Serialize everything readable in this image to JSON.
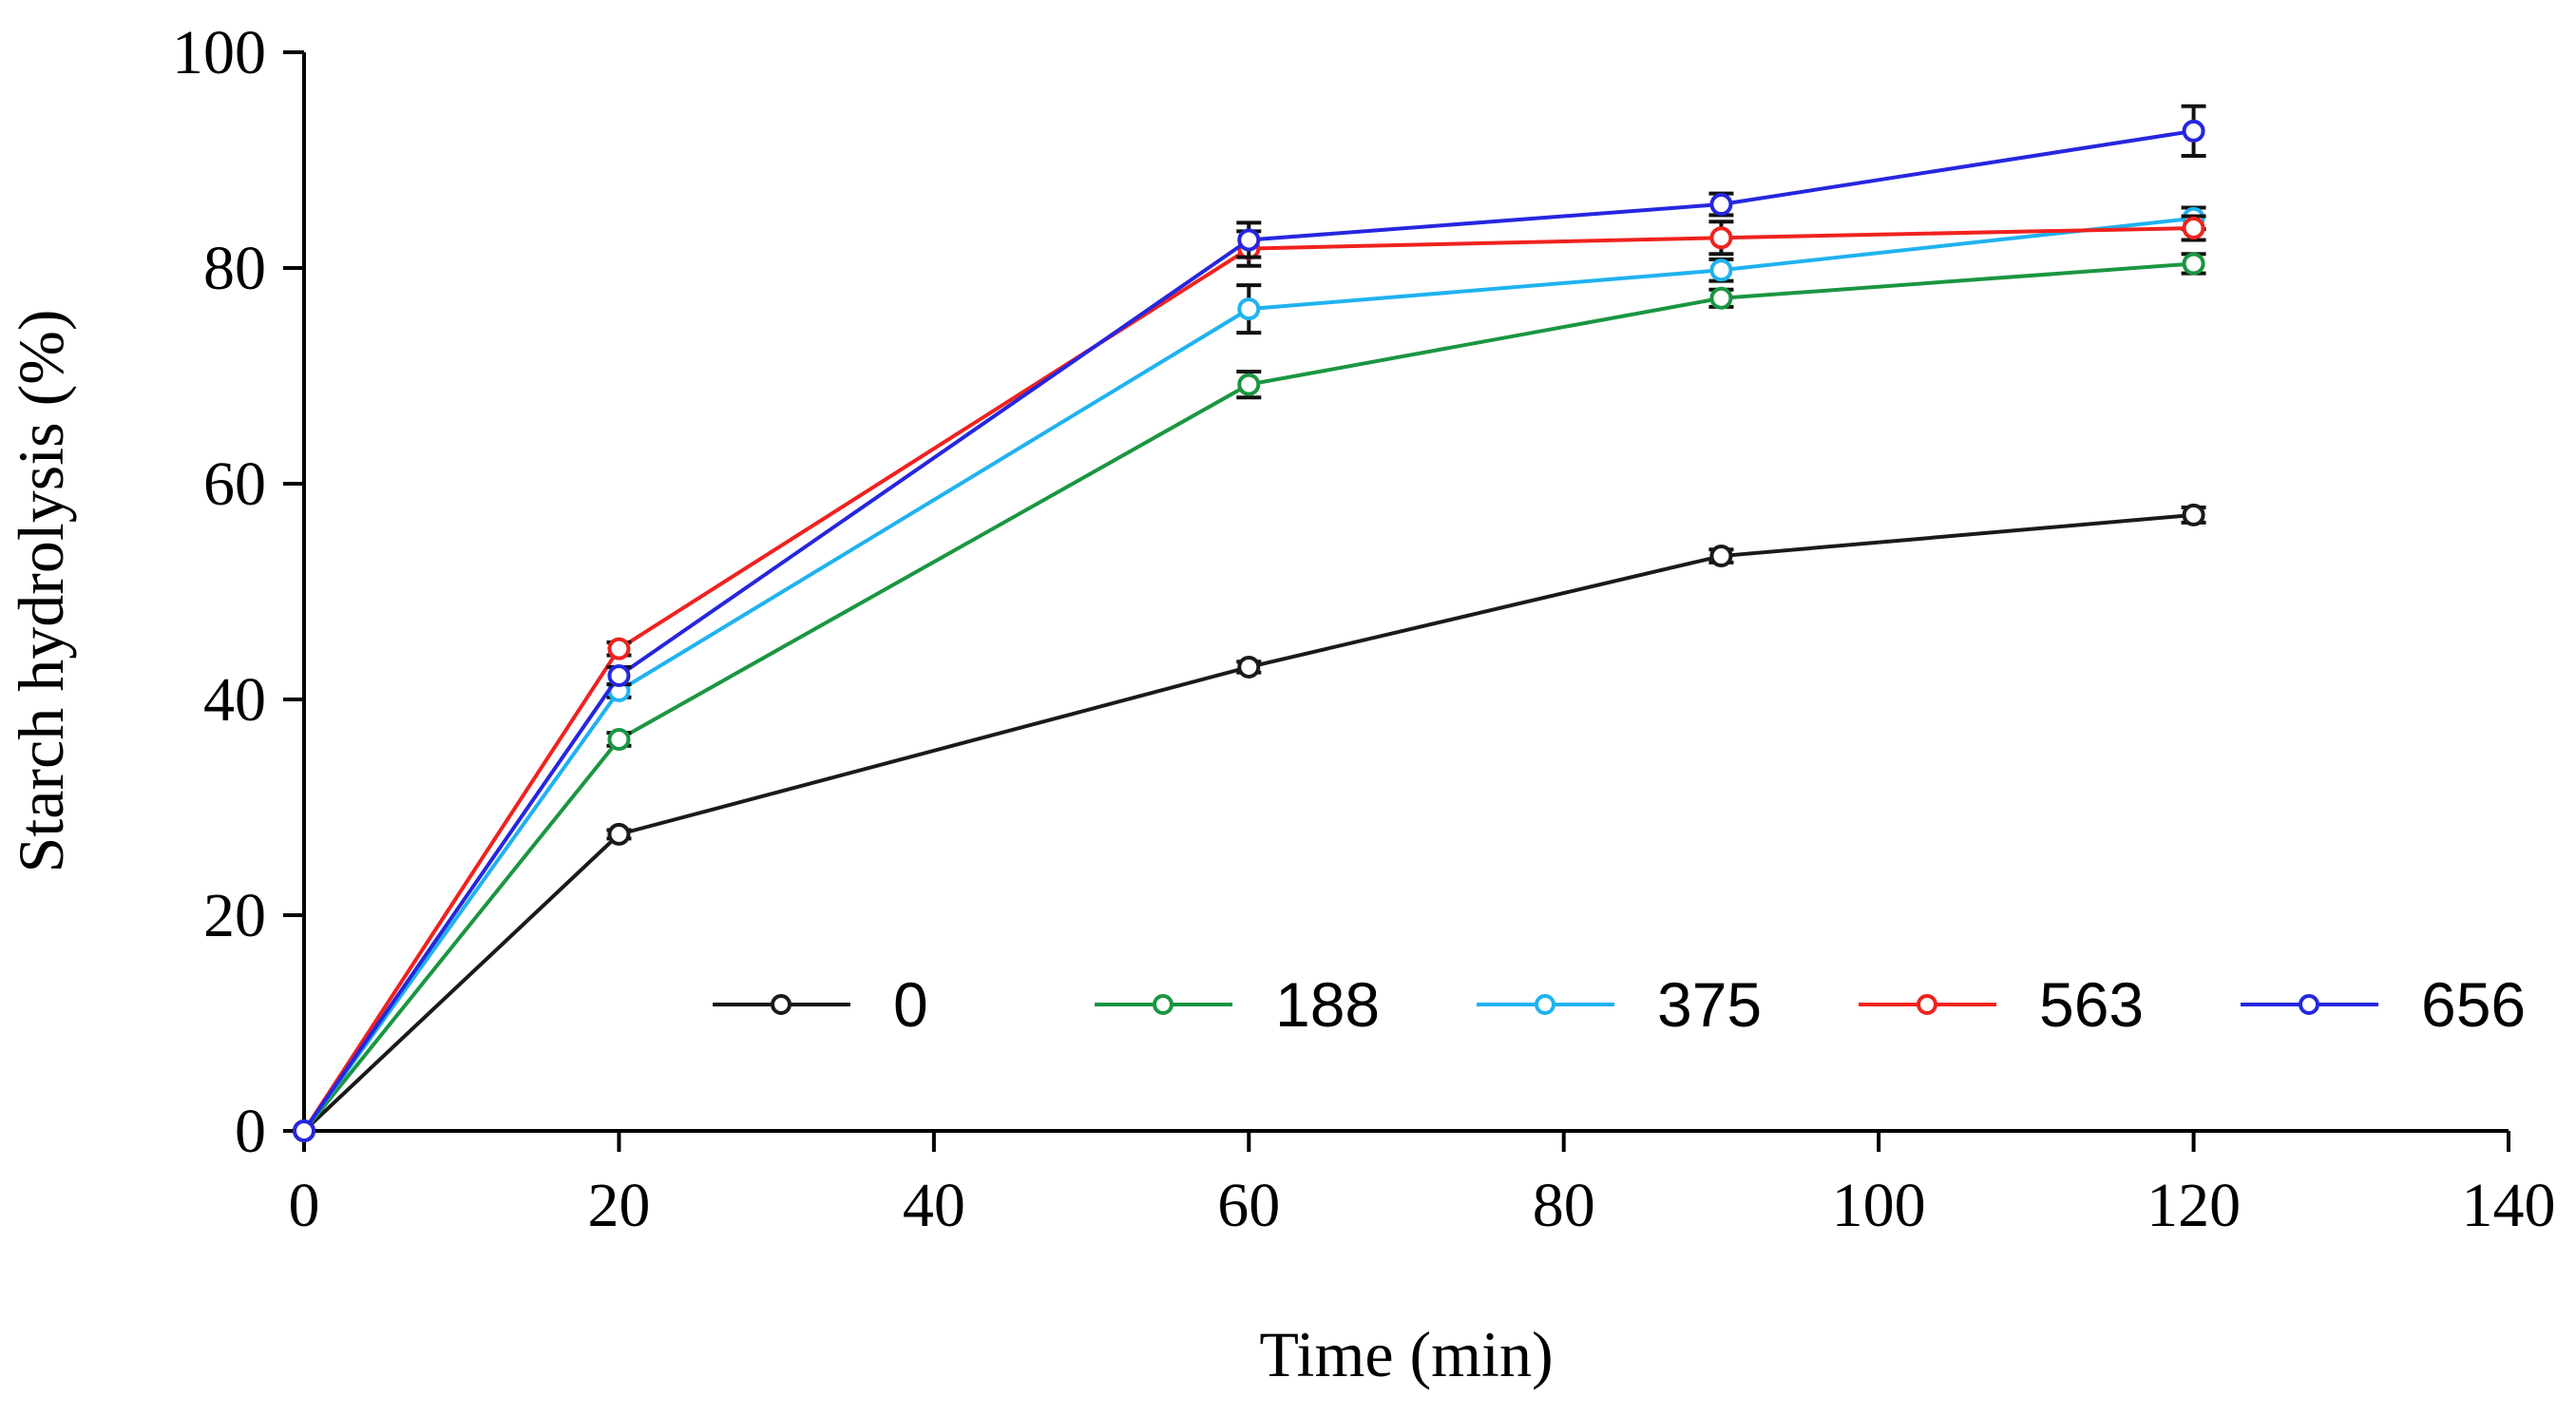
{
  "chart_data": {
    "type": "line",
    "title": "",
    "xlabel": "Time  (min)",
    "ylabel": "Starch  hydrolysis  (%)",
    "xlim": [
      0,
      140
    ],
    "ylim": [
      0,
      100
    ],
    "xticks": [
      "0",
      "20",
      "40",
      "60",
      "80",
      "100",
      "120",
      "140"
    ],
    "yticks": [
      "0",
      "20",
      "40",
      "60",
      "80",
      "100"
    ],
    "grid": false,
    "legend_position": "bottom-right inside",
    "x": [
      0,
      20,
      60,
      90,
      120
    ],
    "series": [
      {
        "name": "0",
        "color": "#1a1a1a",
        "values": [
          0,
          27.5,
          43,
          53.3,
          57.1
        ],
        "errors": [
          0,
          0.4,
          0.5,
          0.6,
          0.7
        ]
      },
      {
        "name": "188",
        "color": "#1a9641",
        "values": [
          0,
          36.3,
          69.2,
          77.2,
          80.4
        ],
        "errors": [
          0,
          0.6,
          1.2,
          0.8,
          0.9
        ]
      },
      {
        "name": "375",
        "color": "#1fb2f0",
        "values": [
          0,
          40.8,
          76.2,
          79.8,
          84.6
        ],
        "errors": [
          0,
          0.6,
          2.2,
          1.0,
          1.0
        ]
      },
      {
        "name": "563",
        "color": "#f0221e",
        "values": [
          0,
          44.7,
          81.8,
          82.8,
          83.7
        ],
        "errors": [
          0,
          0.6,
          1.6,
          1.5,
          1.1
        ]
      },
      {
        "name": "656",
        "color": "#2626e0",
        "values": [
          0,
          42.2,
          82.6,
          85.9,
          92.7
        ],
        "errors": [
          0,
          0.8,
          1.6,
          1.0,
          2.3
        ]
      }
    ]
  }
}
